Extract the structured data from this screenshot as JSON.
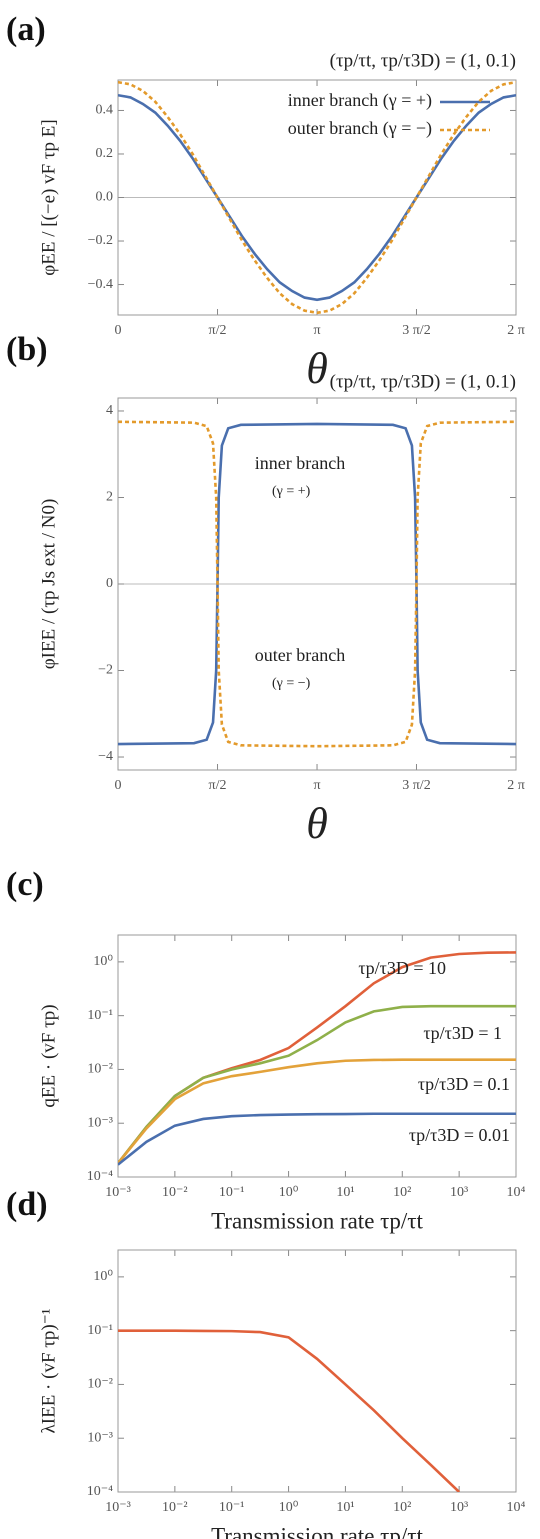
{
  "chart_data": [
    {
      "type": "line",
      "panel_label": "(a)",
      "subtitle": "(τp/τt,  τp/τ3D) = (1,  0.1)",
      "xlabel": "θ",
      "ylabel": "φEE / [(−e) vF τp E]",
      "x": [
        0,
        0.196,
        0.393,
        0.589,
        0.785,
        0.982,
        1.178,
        1.374,
        1.571,
        1.767,
        1.963,
        2.16,
        2.356,
        2.553,
        2.749,
        2.945,
        3.142,
        3.338,
        3.534,
        3.731,
        3.927,
        4.123,
        4.32,
        4.516,
        4.712,
        4.909,
        5.105,
        5.301,
        5.498,
        5.694,
        5.89,
        6.087,
        6.283
      ],
      "series": [
        {
          "name": "inner branch (γ = +)",
          "color": "#4a6fae",
          "style": "solid",
          "values": [
            0.47,
            0.46,
            0.43,
            0.39,
            0.33,
            0.26,
            0.18,
            0.09,
            0,
            -0.09,
            -0.18,
            -0.26,
            -0.33,
            -0.39,
            -0.43,
            -0.46,
            -0.47,
            -0.46,
            -0.43,
            -0.39,
            -0.33,
            -0.26,
            -0.18,
            -0.09,
            0,
            0.09,
            0.18,
            0.26,
            0.33,
            0.39,
            0.43,
            0.46,
            0.47
          ]
        },
        {
          "name": "outer branch (γ = −)",
          "color": "#e39a2b",
          "style": "dashed",
          "values": [
            0.53,
            0.52,
            0.49,
            0.44,
            0.37,
            0.29,
            0.2,
            0.1,
            0,
            -0.1,
            -0.2,
            -0.29,
            -0.37,
            -0.44,
            -0.49,
            -0.52,
            -0.53,
            -0.52,
            -0.49,
            -0.44,
            -0.37,
            -0.29,
            -0.2,
            -0.1,
            0,
            0.1,
            0.2,
            0.29,
            0.37,
            0.44,
            0.49,
            0.52,
            0.53
          ]
        }
      ],
      "xlim": [
        0,
        6.283
      ],
      "xticks": [
        0,
        {
          "value": 1.571,
          "label": "π/2"
        },
        {
          "value": 3.142,
          "label": "π"
        },
        {
          "value": 4.712,
          "label": "3 π/2"
        },
        {
          "value": 6.283,
          "label": "2 π"
        }
      ],
      "ylim": [
        -0.54,
        0.54
      ],
      "yticks": [
        0.4,
        0.2,
        {
          "value": 0,
          "label": "0.0"
        },
        {
          "value": -0.2,
          "label": "−0.2"
        },
        {
          "value": -0.4,
          "label": "−0.4"
        }
      ],
      "hline": 0,
      "legend": "upper center"
    },
    {
      "type": "line",
      "panel_label": "(b)",
      "subtitle": "(τp/τt,  τp/τ3D) = (1,  0.1)",
      "xlabel": "θ",
      "ylabel": "φIEE / (τp Js ext / N0)",
      "x": [
        0,
        1.2,
        1.4,
        1.5,
        1.55,
        1.571,
        1.59,
        1.64,
        1.74,
        1.94,
        3.142,
        4.34,
        4.54,
        4.64,
        4.69,
        4.712,
        4.73,
        4.78,
        4.88,
        5.08,
        6.283
      ],
      "series": [
        {
          "name": "inner branch",
          "color": "#4a6fae",
          "style": "solid",
          "values": [
            -3.7,
            -3.68,
            -3.6,
            -3.2,
            -2.0,
            0,
            2.0,
            3.2,
            3.6,
            3.68,
            3.7,
            3.68,
            3.6,
            3.2,
            2.0,
            0,
            -2.0,
            -3.2,
            -3.6,
            -3.68,
            -3.7
          ]
        },
        {
          "name": "outer branch",
          "color": "#e39a2b",
          "style": "dashed",
          "values": [
            3.75,
            3.73,
            3.65,
            3.25,
            2.0,
            0,
            -2.0,
            -3.25,
            -3.65,
            -3.73,
            -3.75,
            -3.73,
            -3.65,
            -3.25,
            -2.0,
            0,
            2.0,
            3.25,
            3.65,
            3.73,
            3.75
          ]
        }
      ],
      "annotations": [
        "(γ = +)",
        "(γ = −)"
      ],
      "xlim": [
        0,
        6.283
      ],
      "xticks": [
        0,
        {
          "value": 1.571,
          "label": "π/2"
        },
        {
          "value": 3.142,
          "label": "π"
        },
        {
          "value": 4.712,
          "label": "3 π/2"
        },
        {
          "value": 6.283,
          "label": "2 π"
        }
      ],
      "ylim": [
        -4.3,
        4.3
      ],
      "yticks": [
        4,
        2,
        0,
        {
          "value": -2,
          "label": "−2"
        },
        {
          "value": -4,
          "label": "−4"
        }
      ],
      "hline": 0
    },
    {
      "type": "line",
      "panel_label": "(c)",
      "xlabel": "Transmission rate  τp/τt",
      "ylabel": "qEE · (vF τp)",
      "xscale": "log",
      "yscale": "log",
      "x": [
        0.001,
        0.00316,
        0.01,
        0.0316,
        0.1,
        0.316,
        1,
        3.16,
        10,
        31.6,
        100,
        316,
        1000,
        3162,
        10000
      ],
      "series": [
        {
          "name": "τp/τ3D = 10",
          "color": "#e0603a",
          "style": "solid",
          "values": [
            0.00018,
            0.00085,
            0.0032,
            0.007,
            0.0105,
            0.015,
            0.025,
            0.06,
            0.15,
            0.4,
            0.8,
            1.2,
            1.4,
            1.48,
            1.5
          ]
        },
        {
          "name": "τp/τ3D = 1",
          "color": "#8fb04a",
          "style": "solid",
          "values": [
            0.00018,
            0.00085,
            0.0032,
            0.007,
            0.01,
            0.013,
            0.018,
            0.035,
            0.075,
            0.12,
            0.145,
            0.15,
            0.15,
            0.15,
            0.15
          ]
        },
        {
          "name": "τp/τ3D = 0.1",
          "color": "#e3a23a",
          "style": "solid",
          "values": [
            0.00018,
            0.0008,
            0.0028,
            0.0055,
            0.0075,
            0.009,
            0.011,
            0.013,
            0.0145,
            0.015,
            0.0152,
            0.0152,
            0.0152,
            0.0152,
            0.0152
          ]
        },
        {
          "name": "τp/τ3D = 0.01",
          "color": "#4a6fae",
          "style": "solid",
          "values": [
            0.00017,
            0.00045,
            0.0009,
            0.0012,
            0.00135,
            0.00142,
            0.00145,
            0.00147,
            0.00148,
            0.0015,
            0.0015,
            0.0015,
            0.0015,
            0.0015,
            0.0015
          ]
        }
      ],
      "xlim": [
        0.001,
        10000
      ],
      "xticks": [
        {
          "value": 0.001,
          "label": "10⁻³"
        },
        {
          "value": 0.01,
          "label": "10⁻²"
        },
        {
          "value": 0.1,
          "label": "10⁻¹"
        },
        {
          "value": 1,
          "label": "10⁰"
        },
        {
          "value": 10,
          "label": "10¹"
        },
        {
          "value": 100,
          "label": "10²"
        },
        {
          "value": 1000,
          "label": "10³"
        },
        {
          "value": 10000,
          "label": "10⁴"
        }
      ],
      "ylim": [
        0.0001,
        3.16
      ],
      "yticks": [
        {
          "value": 1,
          "label": "10⁰"
        },
        {
          "value": 0.1,
          "label": "10⁻¹"
        },
        {
          "value": 0.01,
          "label": "10⁻²"
        },
        {
          "value": 0.001,
          "label": "10⁻³"
        },
        {
          "value": 0.0001,
          "label": "10⁻⁴"
        }
      ]
    },
    {
      "type": "line",
      "panel_label": "(d)",
      "xlabel": "Transmission rate  τp/τt",
      "ylabel": "λIEE · (vF τp)⁻¹",
      "xscale": "log",
      "yscale": "log",
      "x": [
        0.001,
        0.00316,
        0.01,
        0.0316,
        0.1,
        0.316,
        1,
        3.16,
        10,
        31.6,
        100,
        316,
        1000
      ],
      "series": [
        {
          "name": "λIEE",
          "color": "#e0603a",
          "style": "solid",
          "values": [
            0.1,
            0.1,
            0.1,
            0.099,
            0.098,
            0.094,
            0.075,
            0.03,
            0.01,
            0.0033,
            0.001,
            0.00032,
            0.0001
          ]
        }
      ],
      "xlim": [
        0.001,
        10000
      ],
      "xticks": [
        {
          "value": 0.001,
          "label": "10⁻³"
        },
        {
          "value": 0.01,
          "label": "10⁻²"
        },
        {
          "value": 0.1,
          "label": "10⁻¹"
        },
        {
          "value": 1,
          "label": "10⁰"
        },
        {
          "value": 10,
          "label": "10¹"
        },
        {
          "value": 100,
          "label": "10²"
        },
        {
          "value": 1000,
          "label": "10³"
        },
        {
          "value": 10000,
          "label": "10⁴"
        }
      ],
      "ylim": [
        0.0001,
        3.16
      ],
      "yticks": [
        {
          "value": 1,
          "label": "10⁰"
        },
        {
          "value": 0.1,
          "label": "10⁻¹"
        },
        {
          "value": 0.01,
          "label": "10⁻²"
        },
        {
          "value": 0.001,
          "label": "10⁻³"
        },
        {
          "value": 0.0001,
          "label": "10⁻⁴"
        }
      ]
    }
  ]
}
